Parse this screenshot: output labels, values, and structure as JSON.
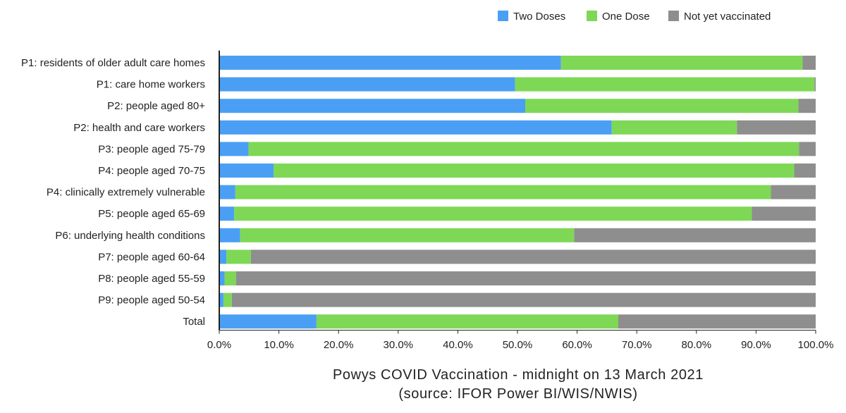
{
  "chart_data": {
    "type": "bar",
    "orientation": "horizontal",
    "stacked": true,
    "title": "Powys COVID Vaccination - midnight on 13 March 2021",
    "subtitle": "(source: IFOR Power BI/WIS/NWIS)",
    "legend_position": "top-right",
    "xlim": [
      0,
      100
    ],
    "x_ticks": [
      "0.0%",
      "10.0%",
      "20.0%",
      "30.0%",
      "40.0%",
      "50.0%",
      "60.0%",
      "70.0%",
      "80.0%",
      "90.0%",
      "100.0%"
    ],
    "categories": [
      "P1: residents of older adult care homes",
      "P1: care home workers",
      "P2: people aged 80+",
      "P2: health and care workers",
      "P3: people aged 75-79",
      "P4: people aged 70-75",
      "P4: clinically extremely vulnerable",
      "P5: people aged 65-69",
      "P6: underlying health conditions",
      "P7: people aged 60-64",
      "P8: people aged 55-59",
      "P9: people aged 50-54",
      "Total"
    ],
    "series": [
      {
        "name": "Two Doses",
        "color": "#4a9ff5",
        "values": [
          57.3,
          49.6,
          51.3,
          65.8,
          4.9,
          9.1,
          2.7,
          2.5,
          3.5,
          1.2,
          0.9,
          0.7,
          16.3
        ]
      },
      {
        "name": "One Dose",
        "color": "#7ed856",
        "values": [
          40.5,
          50.2,
          45.8,
          21.0,
          92.3,
          87.3,
          89.8,
          86.8,
          56.0,
          4.1,
          1.9,
          1.4,
          50.6
        ]
      },
      {
        "name": "Not yet vaccinated",
        "color": "#8e8e8e",
        "values": [
          2.2,
          0.2,
          2.9,
          13.2,
          2.8,
          3.6,
          7.5,
          10.7,
          40.5,
          94.7,
          97.2,
          97.9,
          33.1
        ]
      }
    ]
  }
}
